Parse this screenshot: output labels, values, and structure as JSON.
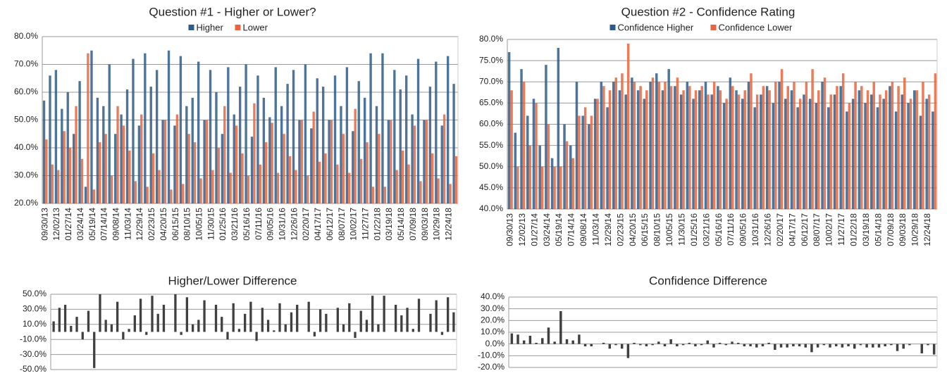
{
  "chart_data": [
    {
      "type": "bar",
      "title": "Question #1 - Higher or Lower?",
      "categories": [
        "09/30/13",
        null,
        "12/02/13",
        null,
        "01/27/14",
        null,
        "03/24/14",
        null,
        "05/19/14",
        null,
        "07/14/14",
        null,
        "09/08/14",
        null,
        "11/03/14",
        null,
        "12/29/14",
        null,
        "02/23/15",
        null,
        "04/20/15",
        null,
        "06/15/15",
        null,
        "08/10/15",
        null,
        "10/05/15",
        null,
        "11/30/15",
        null,
        "01/25/16",
        null,
        "03/21/16",
        null,
        "05/16/16",
        null,
        "07/11/16",
        null,
        "09/05/16",
        null,
        "10/31/16",
        null,
        "12/26/16",
        null,
        "02/20/17",
        null,
        "04/17/17",
        null,
        "06/12/17",
        null,
        "08/07/17",
        null,
        "10/02/17",
        null,
        "11/27/17",
        null,
        "01/22/18",
        null,
        "03/19/18",
        null,
        "05/14/18",
        null,
        "07/09/18",
        null,
        "09/03/18",
        null,
        "10/29/18",
        null,
        "12/24/18",
        null
      ],
      "series": [
        {
          "name": "Higher",
          "color": "#2e5c8a",
          "values": [
            57,
            66,
            68,
            54,
            60,
            45,
            64,
            26,
            75,
            58,
            55,
            70,
            45,
            52,
            61,
            72,
            48,
            74,
            62,
            68,
            50,
            75,
            48,
            73,
            55,
            58,
            71,
            50,
            68,
            60,
            45,
            69,
            52,
            62,
            70,
            44,
            66,
            58,
            51,
            69,
            55,
            63,
            68,
            50,
            70,
            47,
            65,
            62,
            50,
            66,
            55,
            69,
            46,
            64,
            58,
            74,
            55,
            74,
            50,
            68,
            61,
            66,
            52,
            72,
            50,
            62,
            71,
            48,
            73,
            63
          ]
        },
        {
          "name": "Lower",
          "color": "#e8643c",
          "values": [
            43,
            34,
            32,
            46,
            40,
            55,
            36,
            74,
            25,
            42,
            45,
            30,
            55,
            48,
            39,
            28,
            52,
            26,
            38,
            32,
            50,
            25,
            52,
            27,
            45,
            42,
            29,
            50,
            32,
            40,
            55,
            31,
            48,
            38,
            30,
            56,
            34,
            42,
            49,
            31,
            45,
            37,
            32,
            50,
            30,
            53,
            35,
            38,
            50,
            34,
            45,
            31,
            54,
            36,
            42,
            26,
            45,
            26,
            50,
            32,
            39,
            34,
            48,
            28,
            50,
            38,
            29,
            52,
            27,
            37
          ]
        }
      ],
      "ylim": [
        20,
        80
      ],
      "yticks": [
        {
          "value": 20,
          "label": "20.0%"
        },
        {
          "value": 30,
          "label": "30.0%"
        },
        {
          "value": 40,
          "label": "40.0%"
        },
        {
          "value": 50,
          "label": "50.0%"
        },
        {
          "value": 60,
          "label": "60.0%"
        },
        {
          "value": 70,
          "label": "70.0%"
        },
        {
          "value": 80,
          "label": "80.0%"
        }
      ],
      "grid": true
    },
    {
      "type": "bar",
      "title": "Question #2 - Confidence Rating",
      "categories": [
        "09/30/13",
        null,
        "12/02/13",
        null,
        "01/27/14",
        null,
        "03/24/14",
        null,
        "05/19/14",
        null,
        "07/14/14",
        null,
        "09/08/14",
        null,
        "11/03/14",
        null,
        "12/29/14",
        null,
        "02/23/15",
        null,
        "04/20/15",
        null,
        "06/15/15",
        null,
        "08/10/15",
        null,
        "10/05/15",
        null,
        "11/30/15",
        null,
        "01/25/16",
        null,
        "03/21/16",
        null,
        "05/16/16",
        null,
        "07/11/16",
        null,
        "09/05/16",
        null,
        "10/31/16",
        null,
        "12/26/16",
        null,
        "02/20/17",
        null,
        "04/17/17",
        null,
        "06/12/17",
        null,
        "08/07/17",
        null,
        "10/02/17",
        null,
        "11/27/17",
        null,
        "01/22/18",
        null,
        "03/19/18",
        null,
        "05/14/18",
        null,
        "07/09/18",
        null,
        "09/03/18",
        null,
        "10/29/18",
        null,
        "12/24/18",
        null
      ],
      "series": [
        {
          "name": "Confidence Higher",
          "color": "#2e5c8a",
          "values": [
            77,
            58,
            73,
            62,
            66,
            55,
            74,
            52,
            78,
            60,
            55,
            70,
            62,
            60,
            66,
            70,
            64,
            70,
            68,
            67,
            71,
            68,
            66,
            70,
            72,
            68,
            73,
            69,
            67,
            70,
            66,
            68,
            70,
            67,
            69,
            65,
            71,
            68,
            66,
            70,
            64,
            67,
            69,
            65,
            70,
            66,
            68,
            64,
            67,
            66,
            65,
            70,
            64,
            67,
            69,
            63,
            66,
            68,
            65,
            67,
            64,
            66,
            69,
            63,
            67,
            65,
            68,
            62,
            66,
            63
          ]
        },
        {
          "name": "Confidence Lower",
          "color": "#e8643c",
          "values": [
            68,
            50,
            70,
            55,
            65,
            50,
            60,
            50,
            50,
            56,
            52,
            62,
            64,
            62,
            66,
            69,
            68,
            71,
            72,
            79,
            70,
            69,
            68,
            71,
            70,
            70,
            69,
            71,
            68,
            69,
            68,
            69,
            67,
            70,
            68,
            66,
            69,
            67,
            68,
            72,
            67,
            69,
            68,
            70,
            73,
            69,
            70,
            66,
            70,
            73,
            68,
            71,
            67,
            69,
            72,
            65,
            70,
            69,
            68,
            70,
            67,
            68,
            70,
            69,
            71,
            66,
            68,
            70,
            67,
            72
          ]
        }
      ],
      "ylim": [
        40,
        80
      ],
      "yticks": [
        {
          "value": 40,
          "label": "40.0%"
        },
        {
          "value": 45,
          "label": "45.0%"
        },
        {
          "value": 50,
          "label": "50.0%"
        },
        {
          "value": 55,
          "label": "55.0%"
        },
        {
          "value": 60,
          "label": "60.0%"
        },
        {
          "value": 65,
          "label": "65.0%"
        },
        {
          "value": 70,
          "label": "70.0%"
        },
        {
          "value": 75,
          "label": "75.0%"
        },
        {
          "value": 80,
          "label": "80.0%"
        }
      ],
      "grid": true
    },
    {
      "type": "bar",
      "title": "Higher/Lower Difference",
      "color": "#404040",
      "values": [
        14,
        32,
        36,
        8,
        20,
        -10,
        28,
        -48,
        50,
        16,
        10,
        40,
        -10,
        4,
        22,
        44,
        -4,
        48,
        24,
        36,
        0,
        50,
        -4,
        46,
        10,
        16,
        42,
        0,
        36,
        20,
        -10,
        38,
        4,
        24,
        40,
        -12,
        32,
        16,
        2,
        38,
        10,
        26,
        36,
        0,
        40,
        -6,
        30,
        24,
        0,
        32,
        10,
        38,
        -8,
        28,
        16,
        48,
        10,
        48,
        0,
        36,
        22,
        32,
        4,
        44,
        0,
        24,
        42,
        -4,
        46,
        26
      ],
      "ylim": [
        -50,
        50
      ],
      "yticks": [
        {
          "value": -50,
          "label": "-50.0%"
        },
        {
          "value": -30,
          "label": "-30.0%"
        },
        {
          "value": -10,
          "label": "-10.0%"
        },
        {
          "value": 10,
          "label": "10.0%"
        },
        {
          "value": 30,
          "label": "30.0%"
        },
        {
          "value": 50,
          "label": "50.0%"
        }
      ],
      "grid": true
    },
    {
      "type": "bar",
      "title": "Confidence Difference",
      "color": "#404040",
      "values": [
        9,
        8,
        3,
        7,
        1,
        5,
        14,
        2,
        28,
        4,
        3,
        8,
        -2,
        -2,
        0,
        1,
        -4,
        -1,
        -4,
        -12,
        1,
        -1,
        -2,
        -1,
        2,
        -2,
        4,
        -2,
        -1,
        1,
        -2,
        -1,
        3,
        -3,
        1,
        -1,
        2,
        1,
        -2,
        -2,
        -3,
        -2,
        1,
        -5,
        -3,
        -3,
        -2,
        -2,
        -3,
        -7,
        -3,
        -1,
        -3,
        -2,
        -3,
        -2,
        -4,
        -1,
        -3,
        -3,
        -3,
        -2,
        -1,
        -6,
        -4,
        -1,
        0,
        -8,
        -1,
        -9
      ],
      "ylim": [
        -20,
        40
      ],
      "yticks": [
        {
          "value": -20,
          "label": "-20.0%"
        },
        {
          "value": -10,
          "label": "-10.0%"
        },
        {
          "value": 0,
          "label": "0.0%"
        },
        {
          "value": 10,
          "label": "10.0%"
        },
        {
          "value": 20,
          "label": "20.0%"
        },
        {
          "value": 30,
          "label": "30.0%"
        },
        {
          "value": 40,
          "label": "40.0%"
        }
      ],
      "grid": true
    }
  ]
}
